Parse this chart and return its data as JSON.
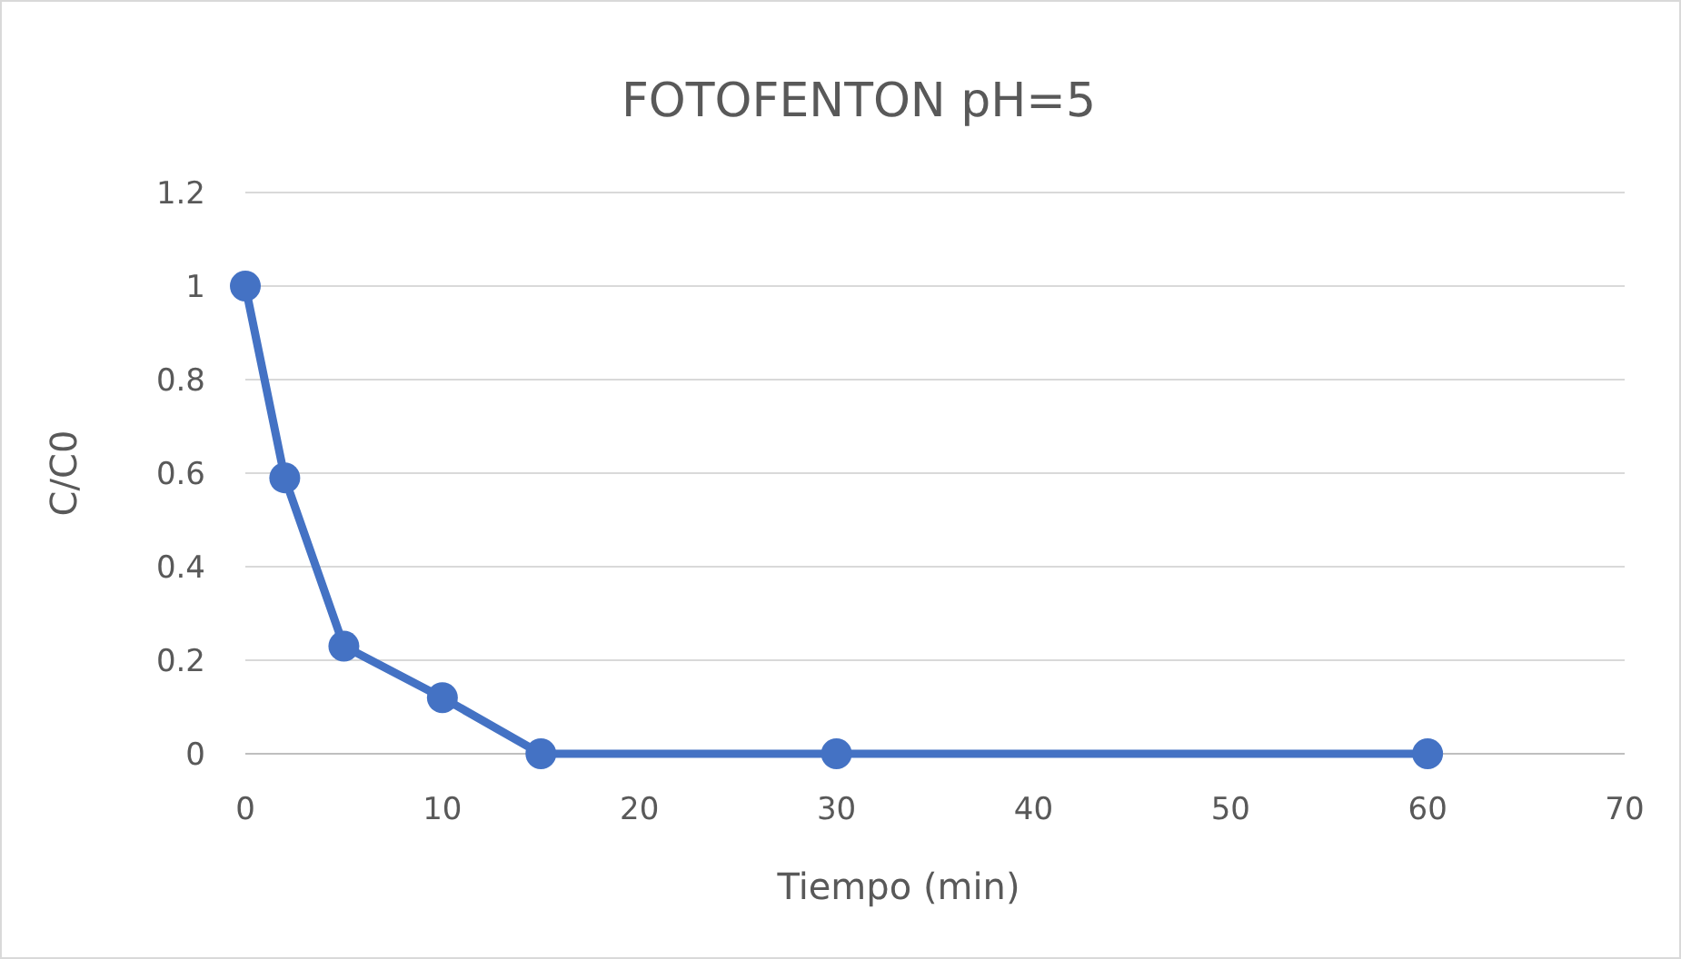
{
  "chart_data": {
    "type": "line",
    "title": "FOTOFENTON pH=5",
    "xlabel": "Tiempo (min)",
    "ylabel": "C/C0",
    "x": [
      0,
      2,
      5,
      10,
      15,
      30,
      60
    ],
    "series": [
      {
        "color": "#4472c4",
        "values": [
          1,
          0.59,
          0.23,
          0.12,
          0,
          0,
          0
        ]
      }
    ],
    "xlim": [
      0,
      70
    ],
    "xticks": [
      0,
      10,
      20,
      30,
      40,
      50,
      60,
      70
    ],
    "ylim": [
      0,
      1.2
    ],
    "yticks": [
      0,
      0.2,
      0.4,
      0.6,
      0.8,
      1,
      1.2
    ],
    "grid": "y",
    "marker": "circle",
    "line_style": "solid"
  }
}
